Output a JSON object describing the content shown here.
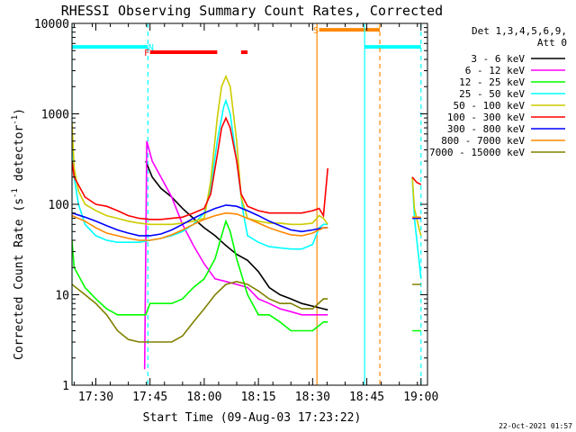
{
  "chart_data": {
    "type": "line",
    "title": "RHESSI Observing Summary Count Rates, Corrected",
    "xlabel": "Start Time (09-Aug-03 17:23:22)",
    "ylabel": "Corrected Count Rate (s",
    "ylabel_sup": "-1",
    "ylabel_tail": " detector",
    "ylabel_close": ")",
    "xscale": "linear",
    "yscale": "log",
    "xlim": [
      17.39,
      19.03
    ],
    "ylim": [
      1,
      10000
    ],
    "xticks": [
      {
        "v": 17.5,
        "label": "17:30"
      },
      {
        "v": 17.75,
        "label": "17:45"
      },
      {
        "v": 18.0,
        "label": "18:00"
      },
      {
        "v": 18.25,
        "label": "18:15"
      },
      {
        "v": 18.5,
        "label": "18:30"
      },
      {
        "v": 18.75,
        "label": "18:45"
      },
      {
        "v": 19.0,
        "label": "19:00"
      }
    ],
    "yticks": [
      {
        "v": 1,
        "label": "1"
      },
      {
        "v": 10,
        "label": "10"
      },
      {
        "v": 100,
        "label": "100"
      },
      {
        "v": 1000,
        "label": "1000"
      },
      {
        "v": 10000,
        "label": "10000"
      }
    ],
    "legend": {
      "placement": "right",
      "header": [
        "Det 1,3,4,5,6,9,",
        "Att 0"
      ]
    },
    "series": [
      {
        "name": "3 - 6 keV",
        "color": "#000000",
        "points": [
          [
            17.73,
            300
          ],
          [
            17.76,
            200
          ],
          [
            17.8,
            150
          ],
          [
            17.85,
            120
          ],
          [
            17.9,
            90
          ],
          [
            17.95,
            70
          ],
          [
            18.0,
            55
          ],
          [
            18.05,
            45
          ],
          [
            18.1,
            35
          ],
          [
            18.15,
            28
          ],
          [
            18.2,
            24
          ],
          [
            18.25,
            18
          ],
          [
            18.3,
            12
          ],
          [
            18.35,
            10
          ],
          [
            18.4,
            9
          ],
          [
            18.45,
            8
          ],
          [
            18.5,
            7.5
          ],
          [
            18.55,
            7
          ],
          [
            18.57,
            6.8
          ]
        ]
      },
      {
        "name": "6 - 12 keV",
        "color": "#ff00ff",
        "points": [
          [
            17.725,
            1.5
          ],
          [
            17.735,
            500
          ],
          [
            17.76,
            300
          ],
          [
            17.8,
            200
          ],
          [
            17.85,
            120
          ],
          [
            17.9,
            60
          ],
          [
            17.95,
            35
          ],
          [
            18.0,
            22
          ],
          [
            18.05,
            15
          ],
          [
            18.1,
            14
          ],
          [
            18.15,
            13
          ],
          [
            18.2,
            12
          ],
          [
            18.25,
            9
          ],
          [
            18.3,
            8
          ],
          [
            18.35,
            7
          ],
          [
            18.4,
            6.5
          ],
          [
            18.45,
            6
          ],
          [
            18.5,
            6
          ],
          [
            18.55,
            6
          ],
          [
            18.57,
            6
          ]
        ]
      },
      {
        "name": "12 - 25 keV",
        "color": "#00ff00",
        "points": [
          [
            17.39,
            40
          ],
          [
            17.4,
            20
          ],
          [
            17.45,
            12
          ],
          [
            17.5,
            9
          ],
          [
            17.55,
            7
          ],
          [
            17.6,
            6
          ],
          [
            17.65,
            6
          ],
          [
            17.7,
            6
          ],
          [
            17.73,
            6
          ],
          [
            17.75,
            8
          ],
          [
            17.8,
            8
          ],
          [
            17.85,
            8
          ],
          [
            17.9,
            9
          ],
          [
            17.95,
            12
          ],
          [
            18.0,
            15
          ],
          [
            18.05,
            25
          ],
          [
            18.08,
            45
          ],
          [
            18.1,
            65
          ],
          [
            18.12,
            50
          ],
          [
            18.15,
            25
          ],
          [
            18.2,
            10
          ],
          [
            18.25,
            6
          ],
          [
            18.3,
            6
          ],
          [
            18.35,
            5
          ],
          [
            18.4,
            4
          ],
          [
            18.45,
            4
          ],
          [
            18.5,
            4
          ],
          [
            18.55,
            5
          ],
          [
            18.57,
            5
          ],
          [
            18.96,
            4
          ],
          [
            19.0,
            4
          ]
        ]
      },
      {
        "name": "25 - 50 keV",
        "color": "#00ffff",
        "points": [
          [
            17.39,
            700
          ],
          [
            17.4,
            200
          ],
          [
            17.42,
            100
          ],
          [
            17.45,
            60
          ],
          [
            17.5,
            45
          ],
          [
            17.55,
            40
          ],
          [
            17.6,
            38
          ],
          [
            17.65,
            38
          ],
          [
            17.7,
            38
          ],
          [
            17.75,
            40
          ],
          [
            17.8,
            42
          ],
          [
            17.85,
            45
          ],
          [
            17.9,
            50
          ],
          [
            17.95,
            60
          ],
          [
            18.0,
            80
          ],
          [
            18.03,
            150
          ],
          [
            18.06,
            500
          ],
          [
            18.09,
            1200
          ],
          [
            18.1,
            1400
          ],
          [
            18.12,
            1000
          ],
          [
            18.15,
            300
          ],
          [
            18.18,
            80
          ],
          [
            18.2,
            45
          ],
          [
            18.25,
            38
          ],
          [
            18.3,
            34
          ],
          [
            18.35,
            33
          ],
          [
            18.4,
            32
          ],
          [
            18.45,
            32
          ],
          [
            18.5,
            36
          ],
          [
            18.53,
            55
          ],
          [
            18.55,
            60
          ],
          [
            18.57,
            60
          ],
          [
            18.96,
            200
          ],
          [
            18.97,
            70
          ],
          [
            18.99,
            25
          ],
          [
            19.0,
            15
          ]
        ]
      },
      {
        "name": "50 - 100 keV",
        "color": "#cccc00",
        "points": [
          [
            17.39,
            800
          ],
          [
            17.4,
            250
          ],
          [
            17.42,
            140
          ],
          [
            17.45,
            100
          ],
          [
            17.5,
            85
          ],
          [
            17.55,
            75
          ],
          [
            17.6,
            70
          ],
          [
            17.65,
            65
          ],
          [
            17.7,
            62
          ],
          [
            17.75,
            60
          ],
          [
            17.8,
            60
          ],
          [
            17.85,
            60
          ],
          [
            17.9,
            62
          ],
          [
            17.95,
            65
          ],
          [
            18.0,
            70
          ],
          [
            18.03,
            180
          ],
          [
            18.06,
            900
          ],
          [
            18.08,
            2000
          ],
          [
            18.1,
            2600
          ],
          [
            18.12,
            2000
          ],
          [
            18.15,
            500
          ],
          [
            18.17,
            120
          ],
          [
            18.2,
            70
          ],
          [
            18.25,
            65
          ],
          [
            18.3,
            62
          ],
          [
            18.35,
            62
          ],
          [
            18.4,
            60
          ],
          [
            18.45,
            60
          ],
          [
            18.5,
            62
          ],
          [
            18.53,
            75
          ],
          [
            18.55,
            70
          ],
          [
            18.57,
            60
          ],
          [
            18.96,
            200
          ],
          [
            18.97,
            90
          ],
          [
            18.99,
            55
          ],
          [
            19.0,
            45
          ]
        ]
      },
      {
        "name": "100 - 300 keV",
        "color": "#ff0000",
        "points": [
          [
            17.39,
            300
          ],
          [
            17.4,
            200
          ],
          [
            17.45,
            120
          ],
          [
            17.5,
            100
          ],
          [
            17.55,
            95
          ],
          [
            17.6,
            85
          ],
          [
            17.65,
            75
          ],
          [
            17.7,
            70
          ],
          [
            17.75,
            68
          ],
          [
            17.8,
            68
          ],
          [
            17.85,
            70
          ],
          [
            17.9,
            72
          ],
          [
            17.95,
            80
          ],
          [
            18.0,
            90
          ],
          [
            18.03,
            130
          ],
          [
            18.06,
            350
          ],
          [
            18.08,
            700
          ],
          [
            18.1,
            900
          ],
          [
            18.12,
            700
          ],
          [
            18.15,
            300
          ],
          [
            18.17,
            130
          ],
          [
            18.2,
            95
          ],
          [
            18.25,
            85
          ],
          [
            18.3,
            80
          ],
          [
            18.35,
            80
          ],
          [
            18.4,
            80
          ],
          [
            18.45,
            80
          ],
          [
            18.5,
            85
          ],
          [
            18.53,
            90
          ],
          [
            18.55,
            75
          ],
          [
            18.57,
            250
          ],
          [
            18.96,
            200
          ],
          [
            18.98,
            175
          ],
          [
            19.0,
            165
          ]
        ]
      },
      {
        "name": "300 - 800 keV",
        "color": "#0000ff",
        "points": [
          [
            17.39,
            80
          ],
          [
            17.45,
            72
          ],
          [
            17.5,
            65
          ],
          [
            17.55,
            58
          ],
          [
            17.6,
            52
          ],
          [
            17.65,
            48
          ],
          [
            17.7,
            45
          ],
          [
            17.75,
            45
          ],
          [
            17.8,
            47
          ],
          [
            17.85,
            52
          ],
          [
            17.9,
            60
          ],
          [
            17.95,
            70
          ],
          [
            18.0,
            80
          ],
          [
            18.05,
            90
          ],
          [
            18.1,
            98
          ],
          [
            18.15,
            95
          ],
          [
            18.2,
            85
          ],
          [
            18.25,
            75
          ],
          [
            18.3,
            65
          ],
          [
            18.35,
            58
          ],
          [
            18.4,
            52
          ],
          [
            18.45,
            50
          ],
          [
            18.5,
            52
          ],
          [
            18.55,
            55
          ],
          [
            18.57,
            55
          ],
          [
            18.96,
            70
          ],
          [
            19.0,
            70
          ]
        ]
      },
      {
        "name": "800 - 7000 keV",
        "color": "#ff8800",
        "points": [
          [
            17.39,
            75
          ],
          [
            17.45,
            65
          ],
          [
            17.5,
            55
          ],
          [
            17.55,
            48
          ],
          [
            17.6,
            45
          ],
          [
            17.65,
            42
          ],
          [
            17.7,
            40
          ],
          [
            17.75,
            40
          ],
          [
            17.8,
            42
          ],
          [
            17.85,
            46
          ],
          [
            17.9,
            52
          ],
          [
            17.95,
            60
          ],
          [
            18.0,
            68
          ],
          [
            18.05,
            75
          ],
          [
            18.1,
            80
          ],
          [
            18.15,
            78
          ],
          [
            18.2,
            70
          ],
          [
            18.25,
            62
          ],
          [
            18.3,
            55
          ],
          [
            18.35,
            50
          ],
          [
            18.4,
            46
          ],
          [
            18.45,
            45
          ],
          [
            18.5,
            48
          ],
          [
            18.55,
            55
          ],
          [
            18.57,
            55
          ],
          [
            18.96,
            72
          ],
          [
            19.0,
            72
          ]
        ]
      },
      {
        "name": "7000 - 15000 keV",
        "color": "#808000",
        "points": [
          [
            17.39,
            13
          ],
          [
            17.45,
            10
          ],
          [
            17.5,
            8
          ],
          [
            17.55,
            6
          ],
          [
            17.6,
            4
          ],
          [
            17.65,
            3.2
          ],
          [
            17.7,
            3
          ],
          [
            17.75,
            3
          ],
          [
            17.8,
            3
          ],
          [
            17.85,
            3
          ],
          [
            17.9,
            3.5
          ],
          [
            17.95,
            5
          ],
          [
            18.0,
            7
          ],
          [
            18.05,
            10
          ],
          [
            18.1,
            13
          ],
          [
            18.15,
            14
          ],
          [
            18.2,
            13
          ],
          [
            18.25,
            11
          ],
          [
            18.3,
            9
          ],
          [
            18.35,
            8
          ],
          [
            18.4,
            8
          ],
          [
            18.45,
            7
          ],
          [
            18.5,
            7
          ],
          [
            18.55,
            9
          ],
          [
            18.57,
            9
          ],
          [
            18.96,
            13
          ],
          [
            19.0,
            13
          ]
        ]
      }
    ],
    "flags": [
      {
        "label": "N",
        "color": "#00ffff",
        "start": 17.39,
        "end": 17.74,
        "value": 5500,
        "label_at": 17.755
      },
      {
        "label": "F",
        "color": "#ff0000",
        "start": 17.75,
        "end": 18.06,
        "value": 4800,
        "label_at": 17.735,
        "extra": [
          18.17,
          18.2
        ]
      },
      {
        "label": "S",
        "color": "#ff8800",
        "start": 18.53,
        "end": 18.81,
        "value": 8500,
        "label_at": 18.515
      },
      {
        "label": "",
        "color": "#00ffff",
        "start": 18.74,
        "end": 19.0,
        "value": 5500
      }
    ],
    "markers": [
      {
        "x": 17.39,
        "color": "#00ffff",
        "style": "solid"
      },
      {
        "x": 17.74,
        "color": "#00ffff",
        "style": "dashed"
      },
      {
        "x": 18.52,
        "color": "#ff8800",
        "style": "solid"
      },
      {
        "x": 18.74,
        "color": "#00ffff",
        "style": "solid"
      },
      {
        "x": 18.81,
        "color": "#ff8800",
        "style": "dashed"
      },
      {
        "x": 19.0,
        "color": "#00ffff",
        "style": "dashed"
      }
    ],
    "footer": "22-Oct-2021 01:57"
  }
}
